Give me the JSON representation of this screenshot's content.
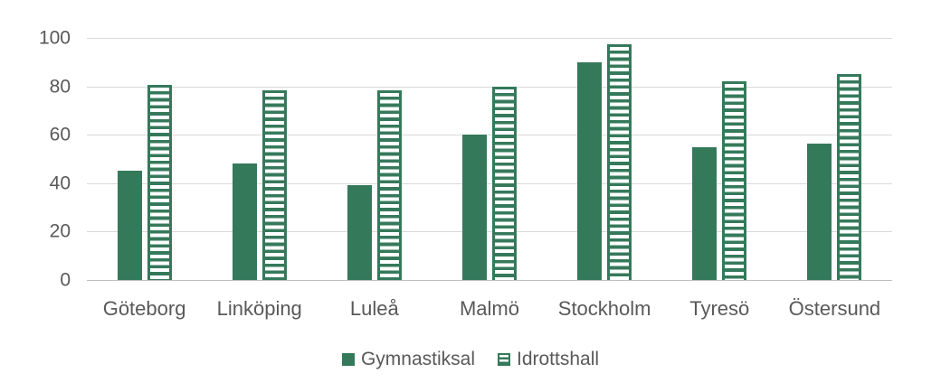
{
  "chart_data": {
    "type": "bar",
    "title": "",
    "xlabel": "",
    "ylabel": "",
    "categories": [
      "Göteborg",
      "Linköping",
      "Luleå",
      "Malmö",
      "Stockholm",
      "Tyresö",
      "Östersund"
    ],
    "series": [
      {
        "name": "Gymnastiksal",
        "style": "solid",
        "values": [
          45,
          48,
          39,
          60,
          90,
          55,
          56.5
        ]
      },
      {
        "name": "Idrottshall",
        "style": "striped",
        "values": [
          80.5,
          78.5,
          78.5,
          80,
          97.5,
          82,
          85
        ]
      }
    ],
    "ylim": [
      0,
      100
    ],
    "yticks": [
      0,
      20,
      40,
      60,
      80,
      100
    ],
    "grid": true,
    "legend_position": "bottom",
    "colors": {
      "bar_green": "#35795B",
      "gridline": "#D9D9D9",
      "axis_line": "#BFBFBF",
      "text": "#595959",
      "background": "#FFFFFF"
    }
  }
}
